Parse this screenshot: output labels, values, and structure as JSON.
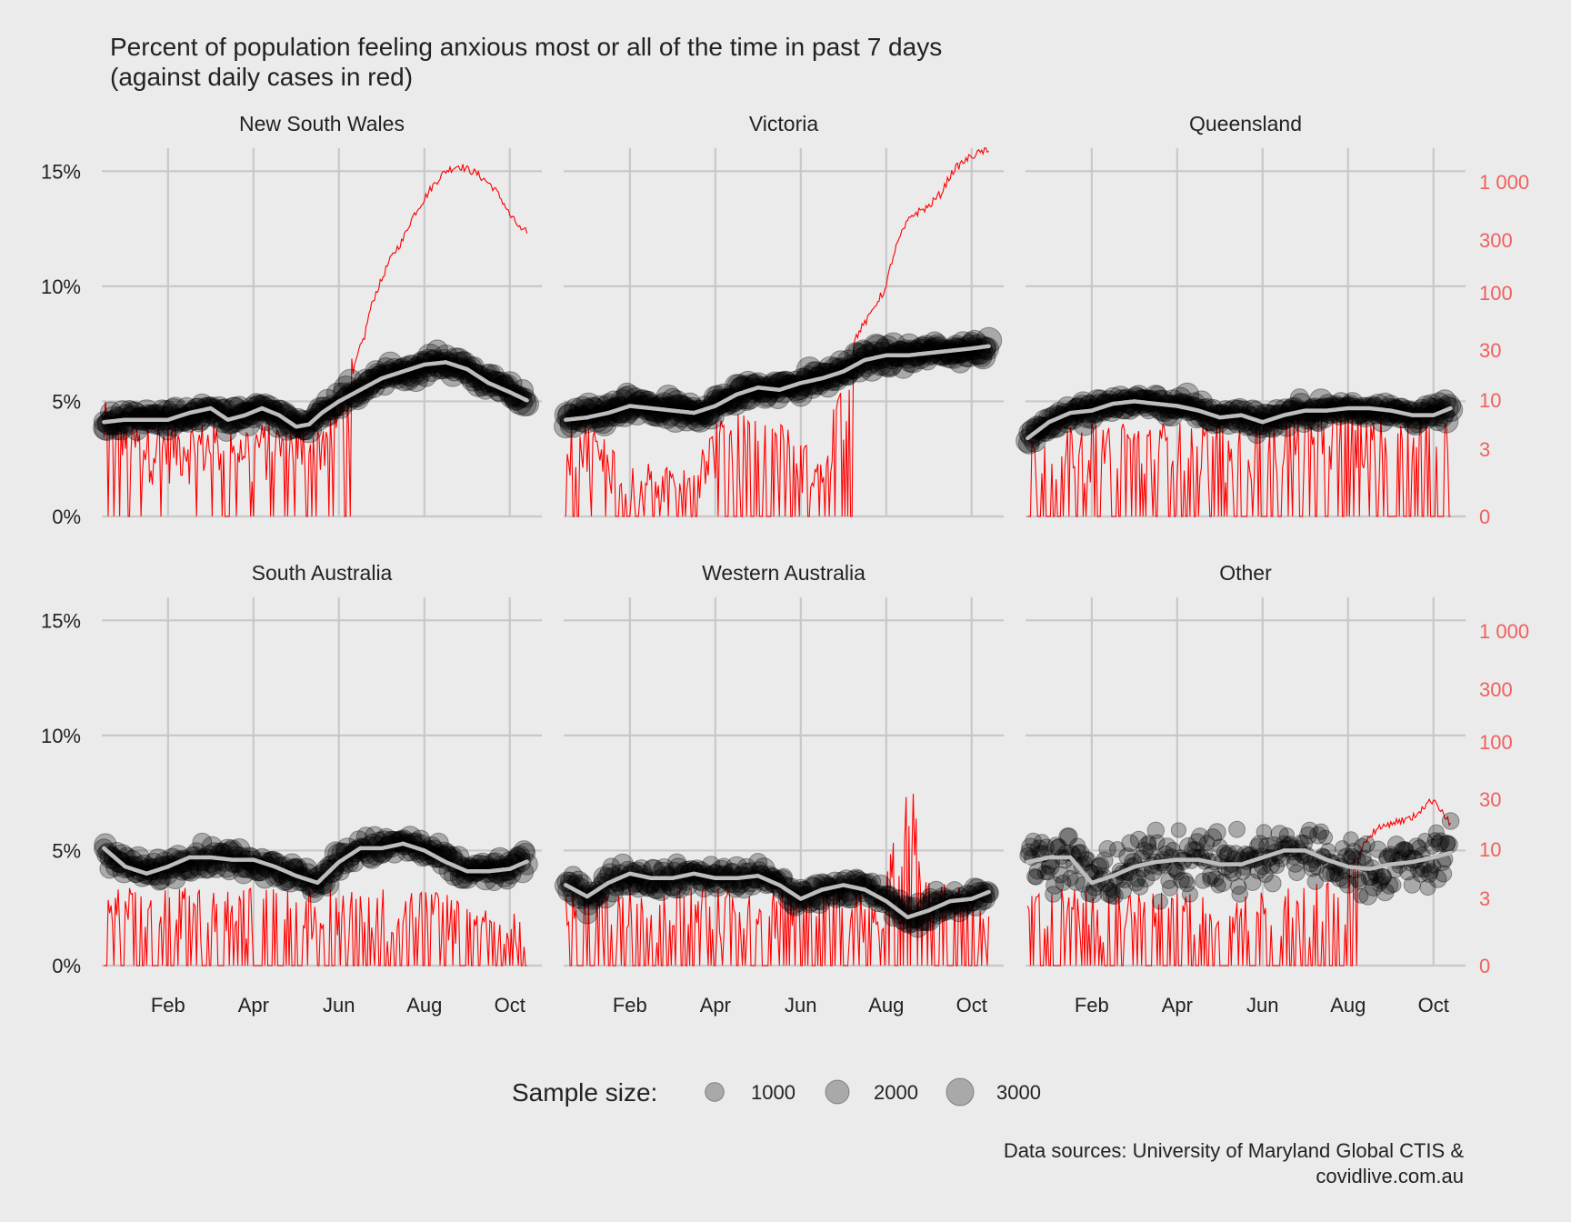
{
  "chart_data": {
    "type": "scatter",
    "title": "Percent of population feeling anxious most or all of the time in past 7 days",
    "subtitle": "(against daily cases in red)",
    "caption_line1": "Data sources: University of Maryland Global CTIS &",
    "caption_line2": "covidlive.com.au",
    "x_ticks": [
      "Feb",
      "Apr",
      "Jun",
      "Aug",
      "Oct"
    ],
    "x_range_months": [
      0.45,
      10.75
    ],
    "y_left": {
      "ticks": [
        "0%",
        "5%",
        "10%",
        "15%"
      ],
      "values": [
        0,
        5,
        10,
        15
      ],
      "range": [
        0,
        16
      ]
    },
    "y_right": {
      "scale": "log1p",
      "ticks": [
        "0",
        "3",
        "10",
        "30",
        "100",
        "300",
        "1 000"
      ],
      "values": [
        0,
        3,
        10,
        30,
        100,
        300,
        1000
      ],
      "color": "#f0605f"
    },
    "legend": {
      "title": "Sample size:",
      "position": "bottom",
      "entries": [
        {
          "label": "1000",
          "value": 1000
        },
        {
          "label": "2000",
          "value": 2000
        },
        {
          "label": "3000",
          "value": 3000
        }
      ]
    },
    "colors": {
      "points": "#000000",
      "trend": "#bdbdbd",
      "cases": "#ff0000",
      "right_axis": "#f0605f",
      "background": "#ebebeb",
      "grid": "#c8c8c8"
    },
    "panels": [
      {
        "name": "New South Wales",
        "trend": [
          [
            0.5,
            4.1
          ],
          [
            1,
            4.2
          ],
          [
            1.5,
            4.2
          ],
          [
            2,
            4.2
          ],
          [
            2.5,
            4.5
          ],
          [
            3,
            4.7
          ],
          [
            3.4,
            4.2
          ],
          [
            3.8,
            4.4
          ],
          [
            4.2,
            4.7
          ],
          [
            4.6,
            4.4
          ],
          [
            5,
            3.9
          ],
          [
            5.3,
            4.0
          ],
          [
            5.6,
            4.5
          ],
          [
            6,
            5.0
          ],
          [
            6.5,
            5.5
          ],
          [
            7,
            6.0
          ],
          [
            7.5,
            6.3
          ],
          [
            8,
            6.6
          ],
          [
            8.5,
            6.7
          ],
          [
            9,
            6.4
          ],
          [
            9.5,
            5.8
          ],
          [
            10,
            5.4
          ],
          [
            10.45,
            5.0
          ]
        ],
        "anxiety_noise": 0.55,
        "size_base": 1700,
        "cases": [
          [
            0.5,
            5
          ],
          [
            1,
            3
          ],
          [
            1.5,
            3
          ],
          [
            2,
            3
          ],
          [
            2.5,
            3
          ],
          [
            3,
            3
          ],
          [
            3.5,
            3
          ],
          [
            4,
            3
          ],
          [
            4.5,
            3
          ],
          [
            5,
            3
          ],
          [
            5.5,
            3
          ],
          [
            6,
            5
          ],
          [
            6.3,
            15
          ],
          [
            6.6,
            40
          ],
          [
            7,
            130
          ],
          [
            7.5,
            300
          ],
          [
            8,
            700
          ],
          [
            8.5,
            1250
          ],
          [
            8.8,
            1400
          ],
          [
            9.2,
            1200
          ],
          [
            9.6,
            900
          ],
          [
            10,
            500
          ],
          [
            10.3,
            350
          ],
          [
            10.5,
            380
          ]
        ],
        "case_noise_until": 6.3,
        "case_zero_prob": 0.2
      },
      {
        "name": "Victoria",
        "trend": [
          [
            0.5,
            4.2
          ],
          [
            1,
            4.3
          ],
          [
            1.5,
            4.5
          ],
          [
            2,
            4.8
          ],
          [
            2.5,
            4.7
          ],
          [
            3,
            4.6
          ],
          [
            3.5,
            4.5
          ],
          [
            4,
            4.8
          ],
          [
            4.5,
            5.3
          ],
          [
            5,
            5.6
          ],
          [
            5.5,
            5.5
          ],
          [
            6,
            5.8
          ],
          [
            6.5,
            6.0
          ],
          [
            7,
            6.3
          ],
          [
            7.5,
            6.8
          ],
          [
            8,
            7.0
          ],
          [
            8.5,
            7.0
          ],
          [
            9,
            7.1
          ],
          [
            9.5,
            7.2
          ],
          [
            10,
            7.3
          ],
          [
            10.4,
            7.4
          ]
        ],
        "anxiety_noise": 0.6,
        "size_base": 1900,
        "cases": [
          [
            0.5,
            3
          ],
          [
            1,
            3
          ],
          [
            1.5,
            2
          ],
          [
            2,
            1
          ],
          [
            2.5,
            1
          ],
          [
            3,
            1
          ],
          [
            3.5,
            1
          ],
          [
            4,
            3
          ],
          [
            4.5,
            4
          ],
          [
            5,
            3
          ],
          [
            5.5,
            3
          ],
          [
            6,
            2
          ],
          [
            6.5,
            1
          ],
          [
            7,
            8
          ],
          [
            7.3,
            40
          ],
          [
            7.6,
            60
          ],
          [
            8,
            110
          ],
          [
            8.3,
            300
          ],
          [
            8.6,
            500
          ],
          [
            9,
            600
          ],
          [
            9.3,
            800
          ],
          [
            9.6,
            1300
          ],
          [
            10,
            1700
          ],
          [
            10.3,
            1900
          ],
          [
            10.4,
            1800
          ]
        ],
        "case_noise_until": 7.2,
        "case_zero_prob": 0.35
      },
      {
        "name": "Queensland",
        "trend": [
          [
            0.5,
            3.4
          ],
          [
            1,
            4.1
          ],
          [
            1.5,
            4.5
          ],
          [
            2,
            4.6
          ],
          [
            2.5,
            4.9
          ],
          [
            3,
            5.0
          ],
          [
            3.5,
            4.9
          ],
          [
            4,
            4.8
          ],
          [
            4.5,
            4.6
          ],
          [
            5,
            4.3
          ],
          [
            5.5,
            4.4
          ],
          [
            6,
            4.1
          ],
          [
            6.5,
            4.4
          ],
          [
            7,
            4.6
          ],
          [
            7.5,
            4.6
          ],
          [
            8,
            4.7
          ],
          [
            8.5,
            4.7
          ],
          [
            9,
            4.6
          ],
          [
            9.5,
            4.4
          ],
          [
            10,
            4.4
          ],
          [
            10.4,
            4.7
          ]
        ],
        "anxiety_noise": 0.6,
        "size_base": 1500,
        "cases": [
          [
            0.5,
            2
          ],
          [
            2,
            3
          ],
          [
            4,
            3
          ],
          [
            6,
            3
          ],
          [
            7.5,
            5
          ],
          [
            8,
            6
          ],
          [
            8.5,
            4
          ],
          [
            9,
            3
          ],
          [
            10,
            4
          ],
          [
            10.4,
            3
          ]
        ],
        "case_noise_until": 11,
        "case_zero_prob": 0.4
      },
      {
        "name": "South Australia",
        "trend": [
          [
            0.5,
            5.1
          ],
          [
            1,
            4.3
          ],
          [
            1.5,
            4.0
          ],
          [
            2,
            4.3
          ],
          [
            2.5,
            4.7
          ],
          [
            3,
            4.7
          ],
          [
            3.5,
            4.6
          ],
          [
            4,
            4.6
          ],
          [
            4.5,
            4.3
          ],
          [
            5,
            3.9
          ],
          [
            5.5,
            3.6
          ],
          [
            6,
            4.5
          ],
          [
            6.5,
            5.1
          ],
          [
            7,
            5.1
          ],
          [
            7.5,
            5.3
          ],
          [
            8,
            5.0
          ],
          [
            8.5,
            4.5
          ],
          [
            9,
            4.1
          ],
          [
            9.5,
            4.1
          ],
          [
            10,
            4.2
          ],
          [
            10.5,
            4.6
          ]
        ],
        "anxiety_noise": 0.7,
        "size_base": 1300,
        "cases": [
          [
            0.5,
            2
          ],
          [
            2,
            2
          ],
          [
            4,
            2
          ],
          [
            6,
            2
          ],
          [
            8,
            2
          ],
          [
            10,
            1
          ],
          [
            10.5,
            1
          ]
        ],
        "case_noise_until": 11,
        "case_zero_prob": 0.45
      },
      {
        "name": "Western Australia",
        "trend": [
          [
            0.5,
            3.5
          ],
          [
            1,
            3.0
          ],
          [
            1.5,
            3.6
          ],
          [
            2,
            4.0
          ],
          [
            2.5,
            3.8
          ],
          [
            3,
            3.8
          ],
          [
            3.5,
            4.0
          ],
          [
            4,
            3.8
          ],
          [
            4.5,
            3.8
          ],
          [
            5,
            3.9
          ],
          [
            5.5,
            3.5
          ],
          [
            6,
            2.9
          ],
          [
            6.5,
            3.3
          ],
          [
            7,
            3.5
          ],
          [
            7.5,
            3.3
          ],
          [
            8,
            2.8
          ],
          [
            8.5,
            2.1
          ],
          [
            9,
            2.4
          ],
          [
            9.5,
            2.8
          ],
          [
            10,
            2.9
          ],
          [
            10.4,
            3.2
          ]
        ],
        "anxiety_noise": 0.7,
        "size_base": 1200,
        "cases": [
          [
            0.5,
            2
          ],
          [
            2,
            2
          ],
          [
            4,
            2
          ],
          [
            6,
            2
          ],
          [
            8,
            2
          ],
          [
            8.6,
            20
          ],
          [
            8.8,
            3
          ],
          [
            10,
            2
          ],
          [
            10.4,
            1
          ]
        ],
        "case_noise_until": 11,
        "case_zero_prob": 0.45
      },
      {
        "name": "Other",
        "trend": [
          [
            0.5,
            4.5
          ],
          [
            1,
            4.7
          ],
          [
            1.5,
            4.7
          ],
          [
            2,
            3.6
          ],
          [
            2.5,
            3.9
          ],
          [
            3,
            4.3
          ],
          [
            3.5,
            4.5
          ],
          [
            4,
            4.6
          ],
          [
            4.5,
            4.6
          ],
          [
            5,
            4.4
          ],
          [
            5.5,
            4.4
          ],
          [
            6,
            4.7
          ],
          [
            6.5,
            5.0
          ],
          [
            7,
            5.0
          ],
          [
            7.5,
            4.6
          ],
          [
            8,
            4.3
          ],
          [
            8.5,
            4.2
          ],
          [
            9,
            4.4
          ],
          [
            9.5,
            4.5
          ],
          [
            10,
            4.7
          ],
          [
            10.4,
            4.9
          ]
        ],
        "anxiety_noise": 1.7,
        "size_base": 600,
        "cases": [
          [
            0.5,
            2
          ],
          [
            2,
            2
          ],
          [
            4,
            2
          ],
          [
            6,
            2
          ],
          [
            8,
            3
          ],
          [
            8.3,
            10
          ],
          [
            8.6,
            15
          ],
          [
            9,
            18
          ],
          [
            9.5,
            20
          ],
          [
            10,
            30
          ],
          [
            10.3,
            20
          ],
          [
            10.5,
            15
          ]
        ],
        "case_noise_until": 8.2,
        "case_zero_prob": 0.5
      }
    ]
  }
}
